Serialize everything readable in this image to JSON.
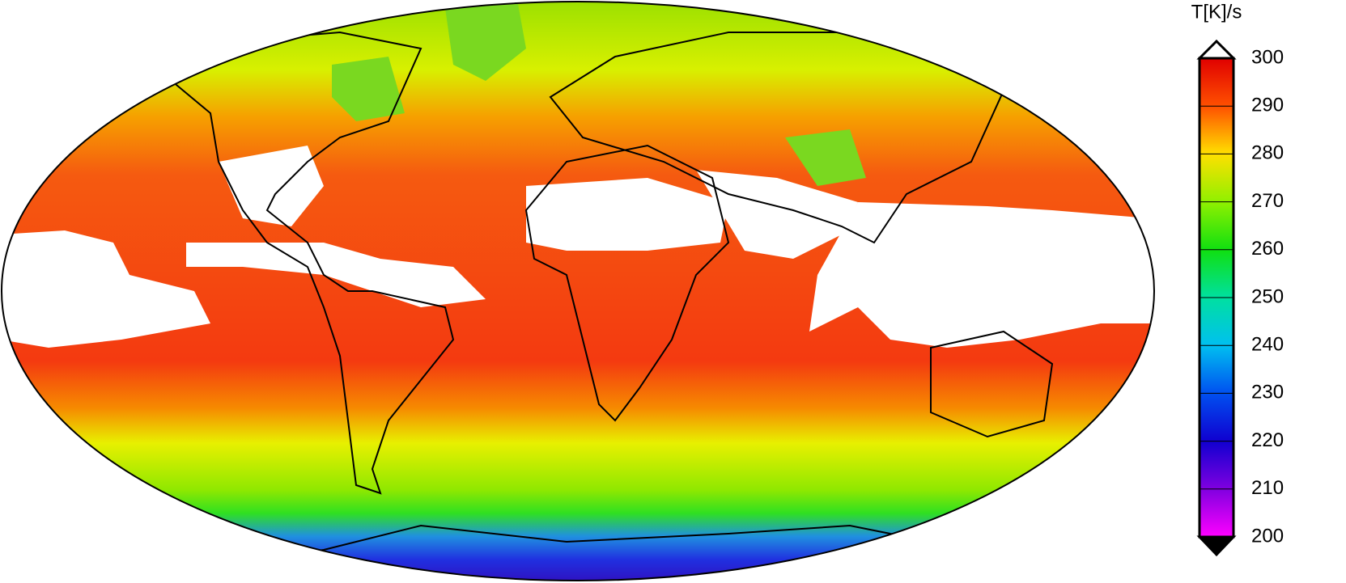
{
  "colorbar": {
    "label": "T[K]/s",
    "range": [
      200,
      300
    ],
    "ticks": [
      200,
      210,
      220,
      230,
      240,
      250,
      260,
      270,
      280,
      290,
      300
    ]
  }
}
